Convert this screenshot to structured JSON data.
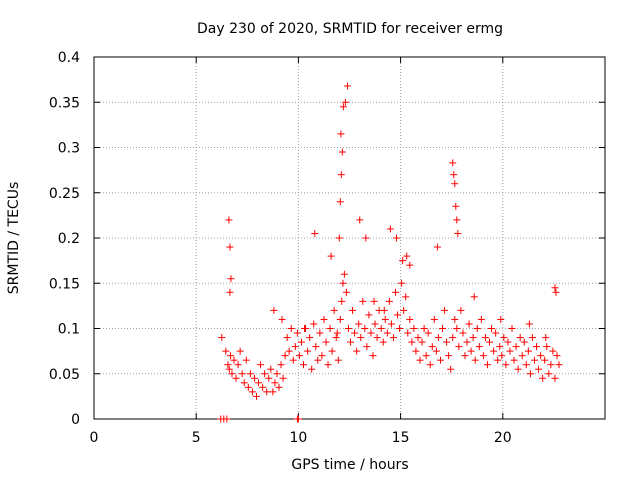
{
  "chart_data": {
    "type": "scatter",
    "title": "Day 230 of 2020, SRMTID for receiver ermg",
    "xlabel": "GPS time / hours",
    "ylabel": "SRMTID / TECUs",
    "xlim": [
      0,
      25
    ],
    "ylim": [
      0,
      0.4
    ],
    "grid": true,
    "marker": "+",
    "color": "#ff0000",
    "xticks": [
      {
        "value": 0,
        "label": "0"
      },
      {
        "value": 5,
        "label": "5"
      },
      {
        "value": 10,
        "label": "10"
      },
      {
        "value": 15,
        "label": "15"
      },
      {
        "value": 20,
        "label": "20"
      }
    ],
    "yticks": [
      {
        "value": 0,
        "label": "0"
      },
      {
        "value": 0.05,
        "label": "0.05"
      },
      {
        "value": 0.1,
        "label": "0.1"
      },
      {
        "value": 0.15,
        "label": "0.15"
      },
      {
        "value": 0.2,
        "label": "0.2"
      },
      {
        "value": 0.25,
        "label": "0.25"
      },
      {
        "value": 0.3,
        "label": "0.3"
      },
      {
        "value": 0.35,
        "label": "0.35"
      },
      {
        "value": 0.4,
        "label": "0.4"
      }
    ],
    "series": [
      {
        "name": "SRMTID",
        "x": [
          6.25,
          6.45,
          6.55,
          6.62,
          6.68,
          6.75,
          6.85,
          6.95,
          7.05,
          7.15,
          7.25,
          7.35,
          7.45,
          7.55,
          7.65,
          7.75,
          7.85,
          7.95,
          8.05,
          8.15,
          8.25,
          8.35,
          8.45,
          8.55,
          8.65,
          8.75,
          8.85,
          8.95,
          9.05,
          9.15,
          9.25,
          9.35,
          9.45,
          9.55,
          9.65,
          9.75,
          9.85,
          9.95,
          10.05,
          10.15,
          10.25,
          10.35,
          10.45,
          10.55,
          10.65,
          10.75,
          10.85,
          10.95,
          11.05,
          11.15,
          11.25,
          11.35,
          11.45,
          11.55,
          11.65,
          11.75,
          11.85,
          11.95,
          12.05,
          12.12,
          12.18,
          12.25,
          12.35,
          12.45,
          12.55,
          12.65,
          12.75,
          12.85,
          12.95,
          13.05,
          13.15,
          13.25,
          13.35,
          13.45,
          13.55,
          13.65,
          13.75,
          13.85,
          13.95,
          14.05,
          14.15,
          14.25,
          14.35,
          14.45,
          14.55,
          14.65,
          14.75,
          14.85,
          14.95,
          15.05,
          15.15,
          15.25,
          15.35,
          15.45,
          15.55,
          15.65,
          15.75,
          15.85,
          15.95,
          16.05,
          16.15,
          16.25,
          16.35,
          16.45,
          16.55,
          16.65,
          16.75,
          16.85,
          16.95,
          17.05,
          17.15,
          17.25,
          17.35,
          17.45,
          17.55,
          17.65,
          17.75,
          17.85,
          17.95,
          18.05,
          18.15,
          18.25,
          18.35,
          18.45,
          18.55,
          18.65,
          18.75,
          18.85,
          18.95,
          19.05,
          19.15,
          19.25,
          19.35,
          19.45,
          19.55,
          19.65,
          19.75,
          19.85,
          19.95,
          20.05,
          20.15,
          20.25,
          20.35,
          20.45,
          20.55,
          20.65,
          20.75,
          20.85,
          20.95,
          21.05,
          21.15,
          21.25,
          21.35,
          21.45,
          21.55,
          21.65,
          21.75,
          21.85,
          21.95,
          22.05,
          22.15,
          22.25,
          22.35,
          22.45,
          22.55,
          22.65,
          22.75,
          6.6,
          6.65,
          6.7,
          6.65,
          6.2,
          6.35,
          6.5,
          9.95,
          10.0,
          12.0,
          12.05,
          12.1,
          12.15,
          12.08,
          12.2,
          12.3,
          12.4,
          13.0,
          13.3,
          14.5,
          14.8,
          15.3,
          17.55,
          17.6,
          17.65,
          17.7,
          17.75,
          17.8,
          22.55,
          22.6,
          10.8,
          11.6,
          16.8,
          15.1,
          15.45,
          8.8,
          9.2,
          10.3,
          11.9,
          13.7,
          14.2,
          18.6,
          19.9,
          21.3,
          22.1
        ],
        "y": [
          0.09,
          0.075,
          0.06,
          0.055,
          0.07,
          0.05,
          0.065,
          0.045,
          0.06,
          0.075,
          0.05,
          0.04,
          0.065,
          0.035,
          0.05,
          0.03,
          0.045,
          0.025,
          0.04,
          0.06,
          0.035,
          0.05,
          0.03,
          0.045,
          0.055,
          0.03,
          0.04,
          0.05,
          0.035,
          0.06,
          0.045,
          0.07,
          0.09,
          0.075,
          0.1,
          0.065,
          0.08,
          0.095,
          0.07,
          0.085,
          0.06,
          0.1,
          0.075,
          0.09,
          0.055,
          0.105,
          0.08,
          0.065,
          0.095,
          0.07,
          0.11,
          0.085,
          0.06,
          0.1,
          0.075,
          0.12,
          0.09,
          0.065,
          0.11,
          0.13,
          0.15,
          0.16,
          0.14,
          0.1,
          0.085,
          0.12,
          0.095,
          0.075,
          0.105,
          0.09,
          0.13,
          0.1,
          0.08,
          0.115,
          0.095,
          0.07,
          0.105,
          0.09,
          0.12,
          0.1,
          0.085,
          0.11,
          0.095,
          0.13,
          0.105,
          0.09,
          0.14,
          0.115,
          0.1,
          0.15,
          0.12,
          0.135,
          0.095,
          0.11,
          0.085,
          0.1,
          0.075,
          0.09,
          0.065,
          0.085,
          0.1,
          0.07,
          0.095,
          0.06,
          0.08,
          0.11,
          0.075,
          0.09,
          0.065,
          0.1,
          0.12,
          0.085,
          0.07,
          0.055,
          0.09,
          0.11,
          0.1,
          0.08,
          0.12,
          0.095,
          0.07,
          0.085,
          0.105,
          0.075,
          0.09,
          0.065,
          0.1,
          0.08,
          0.11,
          0.07,
          0.09,
          0.06,
          0.085,
          0.1,
          0.075,
          0.095,
          0.065,
          0.08,
          0.07,
          0.09,
          0.06,
          0.085,
          0.075,
          0.1,
          0.065,
          0.08,
          0.055,
          0.09,
          0.07,
          0.085,
          0.06,
          0.075,
          0.05,
          0.09,
          0.065,
          0.08,
          0.055,
          0.07,
          0.045,
          0.065,
          0.08,
          0.05,
          0.06,
          0.075,
          0.045,
          0.07,
          0.06,
          0.22,
          0.19,
          0.155,
          0.14,
          0.0,
          0.0,
          0.0,
          0.0,
          0.0,
          0.2,
          0.24,
          0.27,
          0.295,
          0.315,
          0.345,
          0.35,
          0.368,
          0.22,
          0.2,
          0.21,
          0.2,
          0.18,
          0.283,
          0.27,
          0.26,
          0.235,
          0.22,
          0.205,
          0.145,
          0.14,
          0.205,
          0.18,
          0.19,
          0.175,
          0.17,
          0.12,
          0.11,
          0.1,
          0.095,
          0.13,
          0.12,
          0.135,
          0.11,
          0.105,
          0.09
        ]
      }
    ]
  }
}
